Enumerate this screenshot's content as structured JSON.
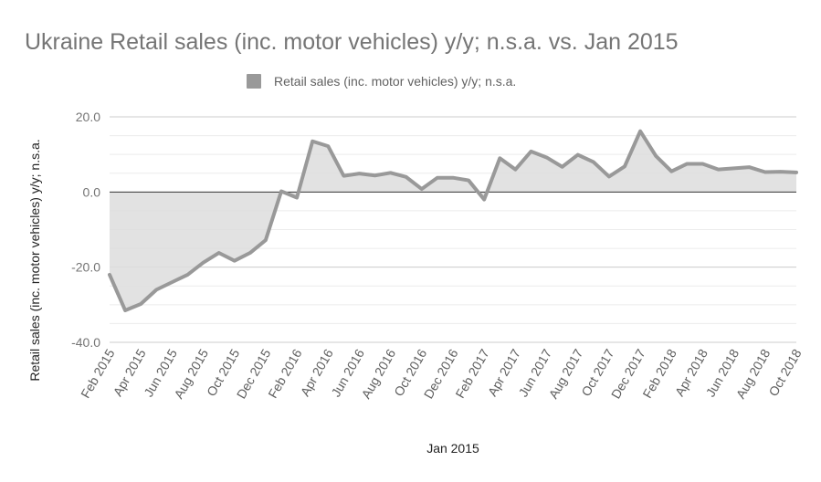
{
  "chart_data": {
    "type": "area",
    "title": "Ukraine Retail sales (inc. motor vehicles) y/y; n.s.a. vs. Jan 2015",
    "xlabel": "Jan 2015",
    "ylabel": "Retail sales (inc. motor vehicles) y/y; n.s.a.",
    "ylim": [
      -40,
      20
    ],
    "y_ticks": [
      "20.0",
      "0.0",
      "-20.0",
      "-40.0"
    ],
    "y_tick_values": [
      20,
      0,
      -20,
      -40
    ],
    "x_tick_labels": [
      "Feb 2015",
      "Apr 2015",
      "Jun 2015",
      "Aug 2015",
      "Oct 2015",
      "Dec 2015",
      "Feb 2016",
      "Apr 2016",
      "Jun 2016",
      "Aug 2016",
      "Oct 2016",
      "Dec 2016",
      "Feb 2017",
      "Apr 2017",
      "Jun 2017",
      "Aug 2017",
      "Oct 2017",
      "Dec 2017",
      "Feb 2018",
      "Apr 2018",
      "Jun 2018",
      "Aug 2018",
      "Oct 2018"
    ],
    "grid": true,
    "legend_position": "top",
    "series": [
      {
        "name": "Retail sales (inc. motor vehicles) y/y; n.s.a.",
        "color": "#999999",
        "fill": "#dddddd",
        "values": [
          -22.0,
          -31.5,
          -29.8,
          -26.0,
          -24.0,
          -22.0,
          -18.8,
          -16.2,
          -18.3,
          -16.2,
          -12.8,
          0.2,
          -1.5,
          13.5,
          12.2,
          4.3,
          4.9,
          4.4,
          5.1,
          4.0,
          0.8,
          3.8,
          3.8,
          3.1,
          -2.0,
          9.0,
          6.0,
          10.8,
          9.2,
          6.7,
          9.9,
          8.0,
          4.1,
          6.8,
          16.2,
          9.6,
          5.5,
          7.5,
          7.5,
          6.0,
          6.3,
          6.6,
          5.3,
          5.4,
          5.2
        ]
      }
    ]
  }
}
